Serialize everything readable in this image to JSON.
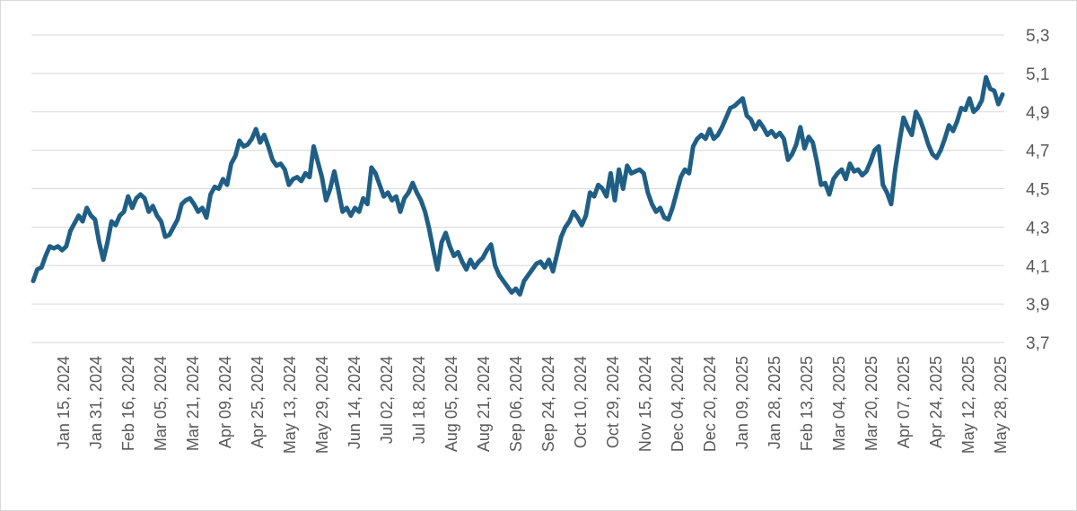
{
  "chart_data": {
    "type": "line",
    "title": "",
    "xlabel": "",
    "ylabel": "",
    "ylim": [
      3.7,
      5.3
    ],
    "y_ticks": [
      "3,7",
      "3,9",
      "4,1",
      "4,3",
      "4,5",
      "4,7",
      "4,9",
      "5,1",
      "5,3"
    ],
    "y_tick_values": [
      3.7,
      3.9,
      4.1,
      4.3,
      4.5,
      4.7,
      4.9,
      5.1,
      5.3
    ],
    "grid": "horizontal",
    "legend": "none",
    "line_color": "#1f5f86",
    "x_ticks": [
      "Jan 15, 2024",
      "Jan 31, 2024",
      "Feb 16, 2024",
      "Mar 05, 2024",
      "Mar 21, 2024",
      "Apr 09, 2024",
      "Apr 25, 2024",
      "May 13, 2024",
      "May 29, 2024",
      "Jun 14, 2024",
      "Jul 02, 2024",
      "Jul 18, 2024",
      "Aug 05, 2024",
      "Aug 21, 2024",
      "Sep 06, 2024",
      "Sep 24, 2024",
      "Oct 10, 2024",
      "Oct 29, 2024",
      "Nov 15, 2024",
      "Dec 04, 2024",
      "Dec 20, 2024",
      "Jan 09, 2025",
      "Jan 28, 2025",
      "Feb 13, 2025",
      "Mar 04, 2025",
      "Mar 20, 2025",
      "Apr 07, 2025",
      "Apr 24, 2025",
      "May 12, 2025",
      "May 28, 2025"
    ],
    "series": [
      {
        "values": [
          4.02,
          4.08,
          4.09,
          4.15,
          4.2,
          4.19,
          4.2,
          4.18,
          4.2,
          4.28,
          4.32,
          4.36,
          4.33,
          4.4,
          4.36,
          4.34,
          4.22,
          4.13,
          4.22,
          4.33,
          4.31,
          4.36,
          4.38,
          4.46,
          4.4,
          4.45,
          4.47,
          4.45,
          4.38,
          4.41,
          4.36,
          4.33,
          4.25,
          4.26,
          4.3,
          4.34,
          4.42,
          4.44,
          4.45,
          4.42,
          4.38,
          4.4,
          4.35,
          4.47,
          4.51,
          4.5,
          4.55,
          4.52,
          4.63,
          4.67,
          4.75,
          4.72,
          4.73,
          4.76,
          4.81,
          4.74,
          4.78,
          4.72,
          4.65,
          4.62,
          4.63,
          4.6,
          4.52,
          4.55,
          4.56,
          4.54,
          4.58,
          4.56,
          4.72,
          4.64,
          4.56,
          4.44,
          4.5,
          4.59,
          4.49,
          4.38,
          4.4,
          4.36,
          4.4,
          4.38,
          4.45,
          4.42,
          4.61,
          4.58,
          4.52,
          4.46,
          4.48,
          4.44,
          4.46,
          4.38,
          4.45,
          4.48,
          4.53,
          4.48,
          4.44,
          4.38,
          4.29,
          4.18,
          4.08,
          4.22,
          4.27,
          4.2,
          4.15,
          4.17,
          4.12,
          4.08,
          4.13,
          4.09,
          4.12,
          4.14,
          4.18,
          4.21,
          4.1,
          4.05,
          4.02,
          3.99,
          3.96,
          3.98,
          3.95,
          4.02,
          4.05,
          4.08,
          4.11,
          4.12,
          4.09,
          4.13,
          4.07,
          4.16,
          4.25,
          4.3,
          4.33,
          4.38,
          4.35,
          4.31,
          4.36,
          4.48,
          4.46,
          4.52,
          4.5,
          4.46,
          4.58,
          4.44,
          4.6,
          4.5,
          4.62,
          4.58,
          4.59,
          4.6,
          4.58,
          4.48,
          4.42,
          4.38,
          4.4,
          4.35,
          4.34,
          4.4,
          4.48,
          4.56,
          4.6,
          4.58,
          4.72,
          4.76,
          4.78,
          4.76,
          4.81,
          4.76,
          4.78,
          4.82,
          4.87,
          4.92,
          4.93,
          4.95,
          4.97,
          4.88,
          4.86,
          4.81,
          4.85,
          4.82,
          4.78,
          4.8,
          4.77,
          4.79,
          4.76,
          4.65,
          4.68,
          4.73,
          4.82,
          4.71,
          4.77,
          4.74,
          4.64,
          4.52,
          4.53,
          4.47,
          4.55,
          4.58,
          4.6,
          4.55,
          4.63,
          4.59,
          4.6,
          4.57,
          4.59,
          4.64,
          4.7,
          4.72,
          4.52,
          4.48,
          4.42,
          4.6,
          4.74,
          4.87,
          4.82,
          4.78,
          4.9,
          4.86,
          4.8,
          4.73,
          4.68,
          4.66,
          4.7,
          4.76,
          4.83,
          4.8,
          4.85,
          4.92,
          4.91,
          4.97,
          4.9,
          4.92,
          4.96,
          5.08,
          5.02,
          5.01,
          4.94,
          4.99
        ]
      }
    ]
  }
}
